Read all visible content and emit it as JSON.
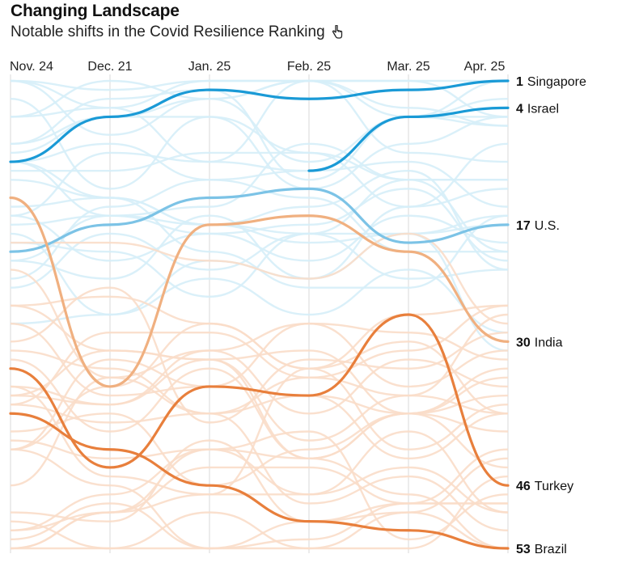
{
  "header": {
    "title": "Changing Landscape",
    "subtitle": "Notable shifts in the Covid Resilience Ranking",
    "subtitle_icon": "pointer-hand-icon"
  },
  "chart_data": {
    "type": "line",
    "title": "Changing Landscape",
    "subtitle": "Notable shifts in the Covid Resilience Ranking",
    "x": [
      "Nov. 24",
      "Dec. 21",
      "Jan. 25",
      "Feb. 25",
      "Mar. 25",
      "Apr. 25"
    ],
    "y_scale": "rank",
    "ylim": [
      1,
      53
    ],
    "y_reversed": true,
    "grid": "vertical",
    "highlighted_series": [
      {
        "name": "Singapore",
        "values": [
          10,
          5,
          2,
          3,
          2,
          1
        ],
        "color": "#1a9ad6",
        "final_rank": "1"
      },
      {
        "name": "Israel",
        "values": [
          null,
          null,
          null,
          11,
          5,
          4
        ],
        "color": "#1a9ad6",
        "final_rank": "4"
      },
      {
        "name": "U.S.",
        "values": [
          20,
          17,
          14,
          13,
          19,
          17
        ],
        "color": "#7cc3e6",
        "final_rank": "17"
      },
      {
        "name": "India",
        "values": [
          14,
          35,
          17,
          16,
          20,
          30
        ],
        "color": "#f0b080",
        "final_rank": "30"
      },
      {
        "name": "Turkey",
        "values": [
          33,
          44,
          35,
          36,
          27,
          46
        ],
        "color": "#e87f3c",
        "final_rank": "46"
      },
      {
        "name": "Brazil",
        "values": [
          38,
          42,
          46,
          50,
          51,
          53
        ],
        "color": "#e87f3c",
        "final_rank": "53"
      }
    ],
    "background_series_count": 53,
    "colors": {
      "top_tier": "#1a9ad6",
      "mid_tier": "#d6eef8",
      "bottom_tier": "#f9ddc9",
      "gridline": "#d8d8d8"
    }
  }
}
